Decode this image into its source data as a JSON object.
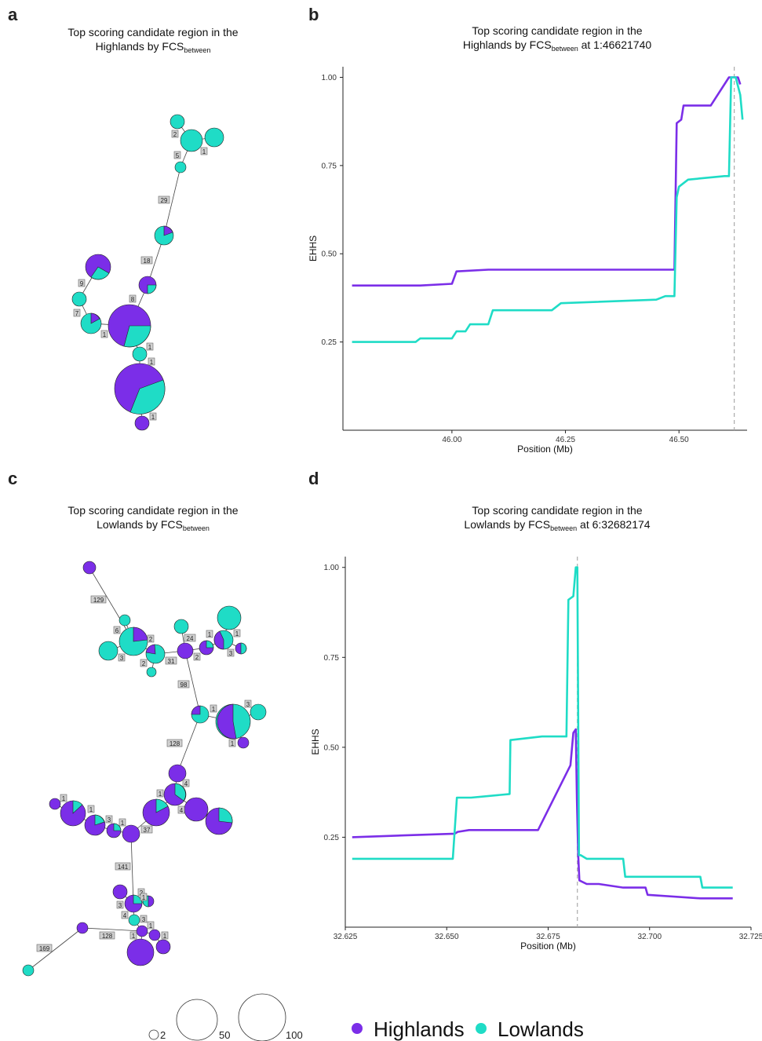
{
  "colors": {
    "highlands": "#7b2ee8",
    "lowlands": "#1fdcc6",
    "ref_line": "#aaaaaa"
  },
  "panels": {
    "a": {
      "letter": "a",
      "title_line1": "Top scoring candidate region in the",
      "title_line2_prefix": "Highlands by FCS",
      "title_sub": "between",
      "title_suffix": ""
    },
    "b": {
      "letter": "b",
      "title_line1": "Top scoring candidate region in the",
      "title_line2_prefix": "Highlands by FCS",
      "title_sub": "between",
      "title_suffix": " at 1:46621740"
    },
    "c": {
      "letter": "c",
      "title_line1": "Top scoring candidate region in the",
      "title_line2_prefix": "Lowlands by FCS",
      "title_sub": "between",
      "title_suffix": ""
    },
    "d": {
      "letter": "d",
      "title_line1": "Top scoring candidate region in the",
      "title_line2_prefix": "Lowlands by FCS",
      "title_sub": "between",
      "title_suffix": " at 6:32682174"
    }
  },
  "size_legend": {
    "labels": [
      "2",
      "50",
      "100"
    ]
  },
  "group_legend": {
    "items": [
      "Highlands",
      "Lowlands"
    ]
  },
  "chart_data": [
    {
      "type": "line",
      "panel": "b",
      "xlabel": "Position (Mb)",
      "ylabel": "EHHS",
      "xlim": [
        45.76,
        46.65
      ],
      "ylim": [
        0.0,
        1.03
      ],
      "xticks": [
        "46.00",
        "46.25",
        "46.50"
      ],
      "yticks": [
        "0.25",
        "0.50",
        "0.75",
        "1.00"
      ],
      "focal_position": 46.6217,
      "series": [
        {
          "name": "Highlands",
          "x": [
            45.78,
            45.93,
            46.0,
            46.01,
            46.08,
            46.49,
            46.495,
            46.505,
            46.51,
            46.57,
            46.61,
            46.63,
            46.635
          ],
          "y": [
            0.41,
            0.41,
            0.415,
            0.45,
            0.455,
            0.455,
            0.87,
            0.88,
            0.92,
            0.92,
            1.0,
            1.0,
            0.98
          ]
        },
        {
          "name": "Lowlands",
          "x": [
            45.78,
            45.92,
            45.93,
            46.0,
            46.01,
            46.03,
            46.04,
            46.08,
            46.09,
            46.22,
            46.24,
            46.45,
            46.47,
            46.49,
            46.495,
            46.5,
            46.52,
            46.6,
            46.61,
            46.615,
            46.625,
            46.635,
            46.64
          ],
          "y": [
            0.25,
            0.25,
            0.26,
            0.26,
            0.28,
            0.28,
            0.3,
            0.3,
            0.34,
            0.34,
            0.36,
            0.37,
            0.38,
            0.38,
            0.66,
            0.69,
            0.71,
            0.72,
            0.72,
            1.0,
            1.0,
            0.95,
            0.88
          ]
        }
      ]
    },
    {
      "type": "line",
      "panel": "d",
      "xlabel": "Position (Mb)",
      "ylabel": "EHHS",
      "xlim": [
        32.625,
        32.725
      ],
      "ylim": [
        0.0,
        1.03
      ],
      "xticks": [
        "32.625",
        "32.650",
        "32.675",
        "32.700",
        "32.725"
      ],
      "yticks": [
        "0.25",
        "0.50",
        "0.75",
        "1.00"
      ],
      "focal_position": 32.6822,
      "series": [
        {
          "name": "Highlands",
          "x": [
            32.6267,
            32.6395,
            32.652,
            32.6527,
            32.6555,
            32.6725,
            32.6805,
            32.6812,
            32.6818,
            32.6821,
            32.6824,
            32.6827,
            32.6845,
            32.6875,
            32.6935,
            32.699,
            32.6995,
            32.7125,
            32.7205
          ],
          "y": [
            0.25,
            0.255,
            0.26,
            0.265,
            0.27,
            0.27,
            0.45,
            0.54,
            0.55,
            0.35,
            0.2,
            0.13,
            0.12,
            0.12,
            0.11,
            0.11,
            0.09,
            0.08,
            0.08
          ]
        },
        {
          "name": "Lowlands",
          "x": [
            32.6267,
            32.6515,
            32.6525,
            32.656,
            32.6655,
            32.6657,
            32.6735,
            32.6795,
            32.68,
            32.6812,
            32.6818,
            32.6822,
            32.6826,
            32.683,
            32.6845,
            32.6935,
            32.694,
            32.699,
            32.7125,
            32.713,
            32.7205
          ],
          "y": [
            0.19,
            0.19,
            0.36,
            0.36,
            0.37,
            0.52,
            0.53,
            0.53,
            0.91,
            0.92,
            1.0,
            1.0,
            0.2,
            0.2,
            0.19,
            0.19,
            0.14,
            0.14,
            0.14,
            0.11,
            0.11
          ]
        }
      ]
    }
  ]
}
